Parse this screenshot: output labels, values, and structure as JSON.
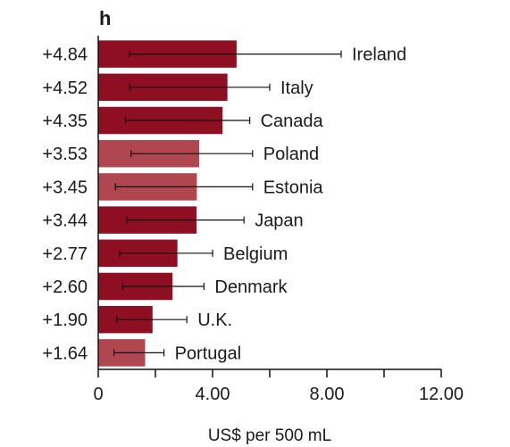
{
  "panel_label": "h",
  "chart_data": {
    "type": "bar",
    "orientation": "horizontal",
    "categories": [
      "Ireland",
      "Italy",
      "Canada",
      "Poland",
      "Estonia",
      "Japan",
      "Belgium",
      "Denmark",
      "U.K.",
      "Portugal"
    ],
    "values": [
      4.84,
      4.52,
      4.35,
      3.53,
      3.45,
      3.44,
      2.77,
      2.6,
      1.9,
      1.64
    ],
    "value_labels": [
      "+4.84",
      "+4.52",
      "+4.35",
      "+3.53",
      "+3.45",
      "+3.44",
      "+2.77",
      "+2.60",
      "+1.90",
      "+1.64"
    ],
    "error_low": [
      1.1,
      1.1,
      0.95,
      1.15,
      0.6,
      1.0,
      0.75,
      0.85,
      0.65,
      0.55
    ],
    "error_high": [
      8.5,
      6.0,
      5.3,
      5.4,
      5.4,
      5.1,
      4.0,
      3.7,
      3.1,
      2.3
    ],
    "bar_colors": [
      "#8f0f22",
      "#8f0f22",
      "#8f0f22",
      "#b0474f",
      "#b0474f",
      "#8f0f22",
      "#8f0f22",
      "#8f0f22",
      "#8f0f22",
      "#b0474f"
    ],
    "xlabel": "US$ per 500 mL",
    "xlim": [
      0,
      12
    ],
    "xticks": [
      0,
      2,
      4,
      6,
      8,
      10,
      12
    ],
    "xtick_labels": [
      "0",
      "",
      "4.00",
      "",
      "8.00",
      "",
      "12.00"
    ],
    "grid": false
  }
}
